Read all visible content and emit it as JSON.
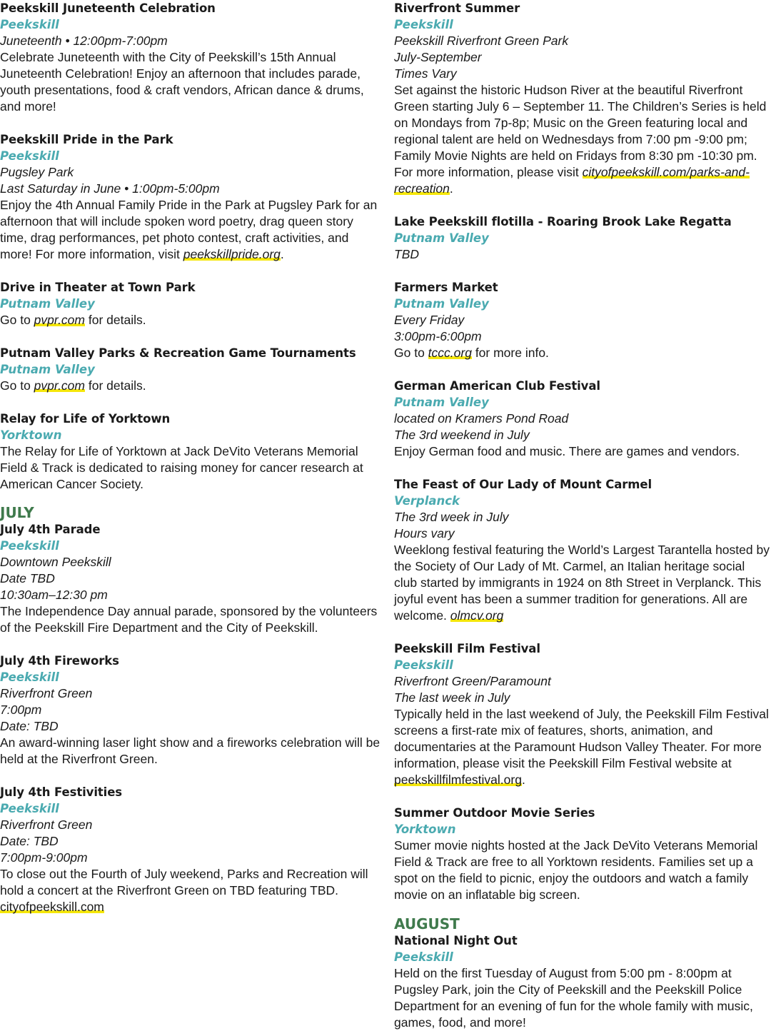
{
  "left": {
    "ev1": {
      "title": "Peekskill Juneteenth Celebration",
      "place": "Peekskill",
      "meta1": "Juneteenth • 12:00pm-7:00pm",
      "desc": "Celebrate Juneteenth with the City of Peekskill’s 15th Annual Juneteenth Celebration! Enjoy an afternoon that includes parade, youth presentations, food & craft vendors, African dance & drums, and more!"
    },
    "ev2": {
      "title": "Peekskill Pride in the Park",
      "place": "Peekskill",
      "meta1": "Pugsley Park",
      "meta2": "Last Saturday in June • 1:00pm-5:00pm",
      "desc": "Enjoy the 4th Annual Family Pride in the Park at Pugsley Park for an afternoon that will include spoken word poetry, drag queen story time, drag performances, pet photo contest, craft activities, and more! For more information, visit ",
      "link": "peekskillpride.org",
      "after": "."
    },
    "ev3": {
      "title": "Drive in Theater at Town Park",
      "place": "Putnam Valley",
      "pre": "Go to ",
      "link": "pvpr.com",
      "after": " for details."
    },
    "ev4": {
      "title": "Putnam Valley Parks & Recreation Game Tournaments",
      "place": "Putnam Valley",
      "pre": "Go to ",
      "link": "pvpr.com",
      "after": " for details."
    },
    "ev5": {
      "title": "Relay for Life of Yorktown",
      "place": "Yorktown",
      "desc": "The Relay for Life of Yorktown at Jack DeVito Veterans Memorial Field & Track is dedicated to raising money for cancer research at American Cancer Society."
    },
    "month": "JULY",
    "ev6": {
      "title": "July 4th Parade",
      "place": "Peekskill",
      "meta1": "Downtown Peekskill",
      "meta2": "Date TBD",
      "meta3": "10:30am–12:30 pm",
      "desc": "The Independence Day annual parade, sponsored by the volunteers of the Peekskill Fire Department and the City of Peekskill."
    },
    "ev7": {
      "title": "July 4th Fireworks",
      "place": "Peekskill",
      "meta1": "Riverfront Green",
      "meta2": "7:00pm",
      "meta3": "Date: TBD",
      "desc": "An award-winning laser light show and a fireworks celebration will be held at the Riverfront Green."
    },
    "ev8": {
      "title": "July 4th Festivities",
      "place": "Peekskill",
      "meta1": "Riverfront Green",
      "meta2": "Date: TBD",
      "meta3": "7:00pm-9:00pm",
      "desc": "To close out the Fourth of July weekend, Parks and Recreation will hold a concert at the Riverfront Green on TBD featuring TBD.",
      "link": "cityofpeekskill.com"
    }
  },
  "right": {
    "ev1": {
      "title": "Riverfront Summer",
      "place": "Peekskill",
      "meta1": "Peekskill Riverfront Green Park",
      "meta2": "July-September",
      "meta3": "Times Vary",
      "desc": "Set against the historic Hudson River at the beautiful Riverfront Green starting July 6 – September 11. The Children’s Series is held on Mondays from 7p-8p; Music on the Green featuring local and regional talent are held on Wednesdays from 7:00 pm -9:00 pm; Family Movie Nights are held on Fridays from 8:30 pm -10:30 pm. For more information, please visit ",
      "link": "cityofpeekskill.com/parks-and-recreation",
      "after": "."
    },
    "ev2": {
      "title": "Lake Peekskill flotilla - Roaring Brook Lake Regatta",
      "place": "Putnam Valley",
      "meta1": "TBD"
    },
    "ev3": {
      "title": "Farmers Market",
      "place": "Putnam Valley",
      "meta1": "Every Friday",
      "meta2": "3:00pm-6:00pm",
      "pre": "Go to ",
      "link": "tccc.org",
      "after": " for more info."
    },
    "ev4": {
      "title": "German American Club Festival",
      "place": "Putnam Valley",
      "meta1": "located on Kramers Pond Road",
      "meta2": "The 3rd weekend in July",
      "desc": "Enjoy German food and music. There are games and vendors."
    },
    "ev5": {
      "title": "The Feast of Our Lady of Mount Carmel",
      "place": "Verplanck",
      "meta1": "The 3rd week in July",
      "meta2": "Hours vary",
      "desc": "Weeklong festival featuring the World’s Largest Tarantella hosted by the Society of Our Lady of Mt. Carmel, an Italian heritage social club started by immigrants in 1924 on 8th Street in Verplanck. This joyful event has been a summer tradition for generations. All are welcome. ",
      "link": "olmcv.org"
    },
    "ev6": {
      "title": "Peekskill Film Festival",
      "place": "Peekskill",
      "meta1": "Riverfront Green/Paramount",
      "meta2": "The last week in July",
      "desc": "Typically held in the last weekend of July, the Peekskill Film Festival screens a first-rate mix of features, shorts, animation, and documentaries at the Paramount Hudson Valley Theater. For more information, please visit the Peekskill Film Festival website at ",
      "link": "peekskillfilmfestival.org",
      "after": "."
    },
    "ev7": {
      "title": "Summer Outdoor Movie Series",
      "place": "Yorktown",
      "desc": "Sumer movie nights hosted at the Jack DeVito Veterans Memorial Field & Track are free to all Yorktown residents. Families set up a spot on the field to picnic, enjoy the outdoors and watch a family movie on an inflatable big screen."
    },
    "month": "AUGUST",
    "ev8": {
      "title": "National Night Out",
      "place": "Peekskill",
      "desc": "Held on the first Tuesday of August from 5:00 pm - 8:00pm at Pugsley Park, join the City of Peekskill and the Peekskill Police Department for an evening of fun for the whole family with music, games, food, and more!"
    }
  },
  "colors": {
    "place": "#4aaab0",
    "month": "#3f7a4c",
    "link_highlight": "#f5e70b"
  }
}
